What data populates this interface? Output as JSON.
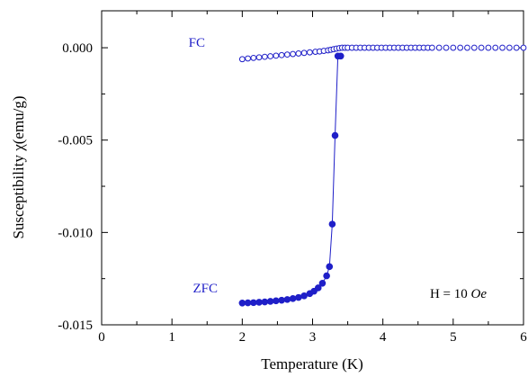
{
  "chart_data": {
    "type": "scatter",
    "xlabel": "Temperature (K)",
    "ylabel": "Susceptibility χ(emu/g)",
    "xlim": [
      0,
      6
    ],
    "ylim": [
      -0.015,
      0.002
    ],
    "xticks": [
      0,
      1,
      2,
      3,
      4,
      5,
      6
    ],
    "xtick_labels": [
      "0",
      "1",
      "2",
      "3",
      "4",
      "5",
      "6"
    ],
    "yticks": [
      0.0,
      -0.005,
      -0.01,
      -0.015
    ],
    "ytick_labels": [
      "0.000",
      "-0.005",
      "-0.010",
      "-0.015"
    ],
    "grid": false,
    "legend": "none",
    "annotation": {
      "prefix": "H = 10 ",
      "italic": "Oe"
    },
    "series": [
      {
        "name": "FC",
        "marker": "open-circle",
        "color": "#1f1fc8",
        "line": false,
        "x": [
          2.0,
          2.08,
          2.16,
          2.24,
          2.32,
          2.4,
          2.48,
          2.56,
          2.64,
          2.72,
          2.8,
          2.88,
          2.96,
          3.04,
          3.1,
          3.16,
          3.22,
          3.26,
          3.3,
          3.34,
          3.38,
          3.42,
          3.46,
          3.5,
          3.56,
          3.62,
          3.68,
          3.74,
          3.8,
          3.86,
          3.92,
          3.98,
          4.04,
          4.1,
          4.16,
          4.22,
          4.28,
          4.34,
          4.4,
          4.46,
          4.52,
          4.58,
          4.64,
          4.7,
          4.8,
          4.9,
          5.0,
          5.1,
          5.2,
          5.3,
          5.4,
          5.5,
          5.6,
          5.7,
          5.8,
          5.9,
          6.0
        ],
        "y": [
          -0.00062,
          -0.00058,
          -0.00055,
          -0.00052,
          -0.00049,
          -0.00046,
          -0.00043,
          -0.0004,
          -0.00037,
          -0.00034,
          -0.00031,
          -0.00028,
          -0.00025,
          -0.00022,
          -0.0002,
          -0.00017,
          -0.00014,
          -0.00011,
          -8e-05,
          -5e-05,
          -2e-05,
          0.0,
          0.0,
          0.0,
          0.0,
          0.0,
          0.0,
          0.0,
          0.0,
          0.0,
          0.0,
          0.0,
          0.0,
          0.0,
          0.0,
          0.0,
          0.0,
          0.0,
          0.0,
          0.0,
          0.0,
          0.0,
          0.0,
          0.0,
          0.0,
          0.0,
          0.0,
          0.0,
          0.0,
          0.0,
          0.0,
          0.0,
          0.0,
          0.0,
          0.0,
          0.0,
          0.0
        ]
      },
      {
        "name": "ZFC",
        "marker": "filled-circle",
        "color": "#1f1fc8",
        "line": true,
        "x": [
          2.0,
          2.08,
          2.16,
          2.24,
          2.32,
          2.4,
          2.48,
          2.56,
          2.64,
          2.72,
          2.8,
          2.88,
          2.96,
          3.02,
          3.08,
          3.14,
          3.2,
          3.24,
          3.28,
          3.32,
          3.36,
          3.4
        ],
        "y": [
          -0.01382,
          -0.01381,
          -0.0138,
          -0.01378,
          -0.01376,
          -0.01373,
          -0.0137,
          -0.01367,
          -0.01363,
          -0.01358,
          -0.01352,
          -0.01343,
          -0.01331,
          -0.01318,
          -0.013,
          -0.01275,
          -0.01235,
          -0.01185,
          -0.00955,
          -0.00475,
          -0.00045,
          -0.00045
        ]
      }
    ]
  }
}
